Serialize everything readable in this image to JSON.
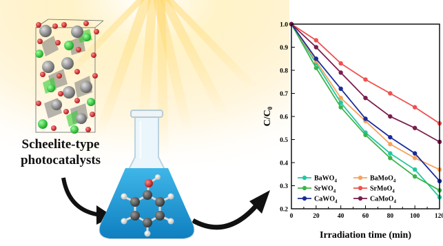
{
  "caption": {
    "line1": "Scheelite-type",
    "line2": "photocatalysts"
  },
  "colors": {
    "light": "#ffd76a",
    "liquid": "#1fa0d8",
    "oxygen": "#d41c1c",
    "tungsten": "#8c8c8c",
    "calcium": "#2fd23a",
    "arrow": "#111111"
  },
  "icons": [
    "crystal-structure-icon",
    "flask-icon",
    "phenol-molecule-icon",
    "curved-arrow-icon",
    "light-rays-icon"
  ],
  "chart_data": {
    "type": "line",
    "xlabel": "Irradiation time (min)",
    "ylabel": "C/C0",
    "xlim": [
      0,
      120
    ],
    "ylim": [
      0.2,
      1.0
    ],
    "xticks": [
      0,
      10,
      20,
      30,
      40,
      50,
      60,
      70,
      80,
      90,
      100,
      110,
      120
    ],
    "yticks": [
      0.2,
      0.3,
      0.4,
      0.5,
      0.6,
      0.7,
      0.8,
      0.9,
      1.0
    ],
    "x": [
      0,
      20,
      40,
      60,
      80,
      100,
      120
    ],
    "legend_position": "bottom-left",
    "series": [
      {
        "name": "BaWO4",
        "base": "BaWO",
        "sub": "4",
        "color": "#22c7a0",
        "values": [
          1.0,
          0.83,
          0.66,
          0.53,
          0.44,
          0.37,
          0.25
        ]
      },
      {
        "name": "BaMoO4",
        "base": "BaMoO",
        "sub": "4",
        "color": "#f7a35c",
        "values": [
          1.0,
          0.84,
          0.68,
          0.58,
          0.48,
          0.42,
          0.37
        ]
      },
      {
        "name": "SrWO4",
        "base": "SrWO",
        "sub": "4",
        "color": "#3cb44b",
        "values": [
          1.0,
          0.81,
          0.64,
          0.52,
          0.42,
          0.34,
          0.28
        ]
      },
      {
        "name": "SrMoO4",
        "base": "SrMoO",
        "sub": "4",
        "color": "#f05050",
        "values": [
          1.0,
          0.93,
          0.83,
          0.76,
          0.7,
          0.64,
          0.57
        ]
      },
      {
        "name": "CaWO4",
        "base": "CaWO",
        "sub": "4",
        "color": "#1a2b9c",
        "values": [
          1.0,
          0.85,
          0.72,
          0.59,
          0.51,
          0.44,
          0.32
        ]
      },
      {
        "name": "CaMoO4",
        "base": "CaMoO",
        "sub": "4",
        "color": "#7a1e4e",
        "values": [
          1.0,
          0.9,
          0.79,
          0.68,
          0.6,
          0.55,
          0.49
        ]
      }
    ]
  }
}
